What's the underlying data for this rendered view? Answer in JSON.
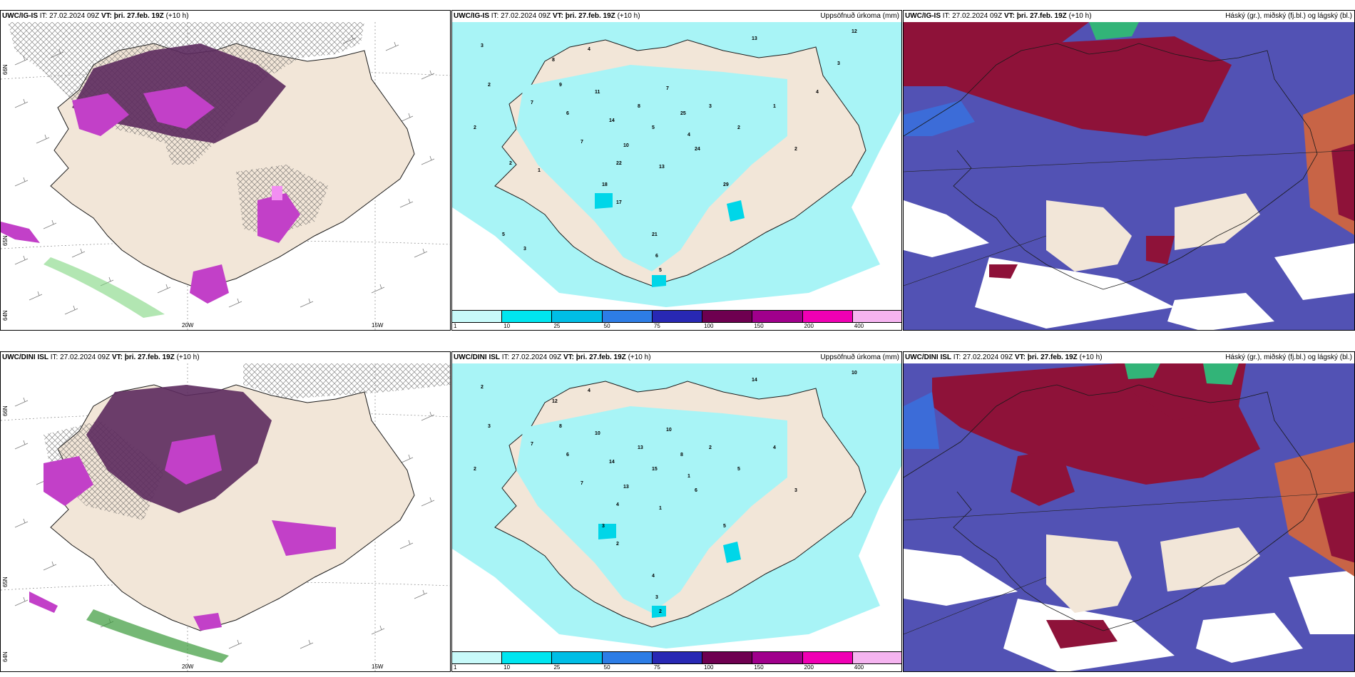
{
  "rows": [
    {
      "panels": [
        {
          "title_model": "UWC/IG-IS",
          "title_it": "IT: 27.02.2024 09Z",
          "title_vt": "VT: þri. 27.feb. 19Z",
          "title_lead": "(+10 h)",
          "right_title": "",
          "kind": "wind"
        },
        {
          "title_model": "UWC/IG-IS",
          "title_it": "IT: 27.02.2024 09Z",
          "title_vt": "VT: þri. 27.feb. 19Z",
          "title_lead": "(+10 h)",
          "right_title": "Uppsöfnuð úrkoma (mm)",
          "kind": "precip"
        },
        {
          "title_model": "UWC/IG-IS",
          "title_it": "IT: 27.02.2024 09Z",
          "title_vt": "VT: þri. 27.feb. 19Z",
          "title_lead": "(+10 h)",
          "right_title": "Háský (gr.), miðský (fj.bl.) og lágský (bl.)",
          "kind": "cloud"
        }
      ]
    },
    {
      "panels": [
        {
          "title_model": "UWC/DINI ISL",
          "title_it": "IT: 27.02.2024 09Z",
          "title_vt": "VT: þri. 27.feb. 19Z",
          "title_lead": "(+10 h)",
          "right_title": "",
          "kind": "wind"
        },
        {
          "title_model": "UWC/DINI ISL",
          "title_it": "IT: 27.02.2024 09Z",
          "title_vt": "VT: þri. 27.feb. 19Z",
          "title_lead": "(+10 h)",
          "right_title": "Uppsöfnuð úrkoma (mm)",
          "kind": "precip"
        },
        {
          "title_model": "UWC/DINI ISL",
          "title_it": "IT: 27.02.2024 09Z",
          "title_vt": "VT: þri. 27.feb. 19Z",
          "title_lead": "(+10 h)",
          "right_title": "Háský (gr.), miðský (fj.bl.) og lágský (bl.)",
          "kind": "cloud"
        }
      ]
    }
  ],
  "axis_labels": {
    "lon_20": "20W",
    "lon_15": "15W",
    "lat_66": "66N",
    "lat_65": "65N",
    "lat_64": "64N"
  },
  "precip_colorbar": {
    "ticks": [
      "1",
      "10",
      "25",
      "50",
      "75",
      "100",
      "150",
      "200",
      "400"
    ],
    "colors": [
      "#c8fafa",
      "#00e6f0",
      "#00bee6",
      "#2d7de6",
      "#2828b4",
      "#6e0050",
      "#a0008c",
      "#f000b4",
      "#f5b4f0"
    ]
  },
  "precip_values": {
    "igis": [
      "3",
      "2",
      "2",
      "4",
      "13",
      "12",
      "7",
      "8",
      "9",
      "6",
      "7",
      "11",
      "14",
      "10",
      "8",
      "5",
      "7",
      "25",
      "24",
      "22",
      "18",
      "17",
      "13",
      "29",
      "21",
      "6",
      "5",
      "4",
      "3",
      "2",
      "1",
      "2",
      "4",
      "3",
      "2",
      "1",
      "5",
      "3"
    ],
    "dini": [
      "2",
      "3",
      "2",
      "4",
      "14",
      "10",
      "7",
      "12",
      "8",
      "6",
      "7",
      "10",
      "14",
      "13",
      "13",
      "15",
      "10",
      "8",
      "6",
      "4",
      "3",
      "2",
      "1",
      "5",
      "4",
      "3",
      "2",
      "1",
      "2",
      "5",
      "4",
      "3"
    ]
  },
  "colors": {
    "land": "#f2e6d8",
    "land_outline": "#1a1a1a",
    "precip_light": "#a8f4f6",
    "precip_med": "#00d6e8",
    "snow_purple": "#5c2a5e",
    "snow_magenta": "#c240c8",
    "snow_pink": "#f28ef2",
    "green": "#7ed67e",
    "cloud_high": "#8e1239",
    "cloud_mid": "#5252b4",
    "cloud_low_blue": "#3c6cd8",
    "cloud_green": "#32b478",
    "cloud_orange": "#c86446"
  }
}
